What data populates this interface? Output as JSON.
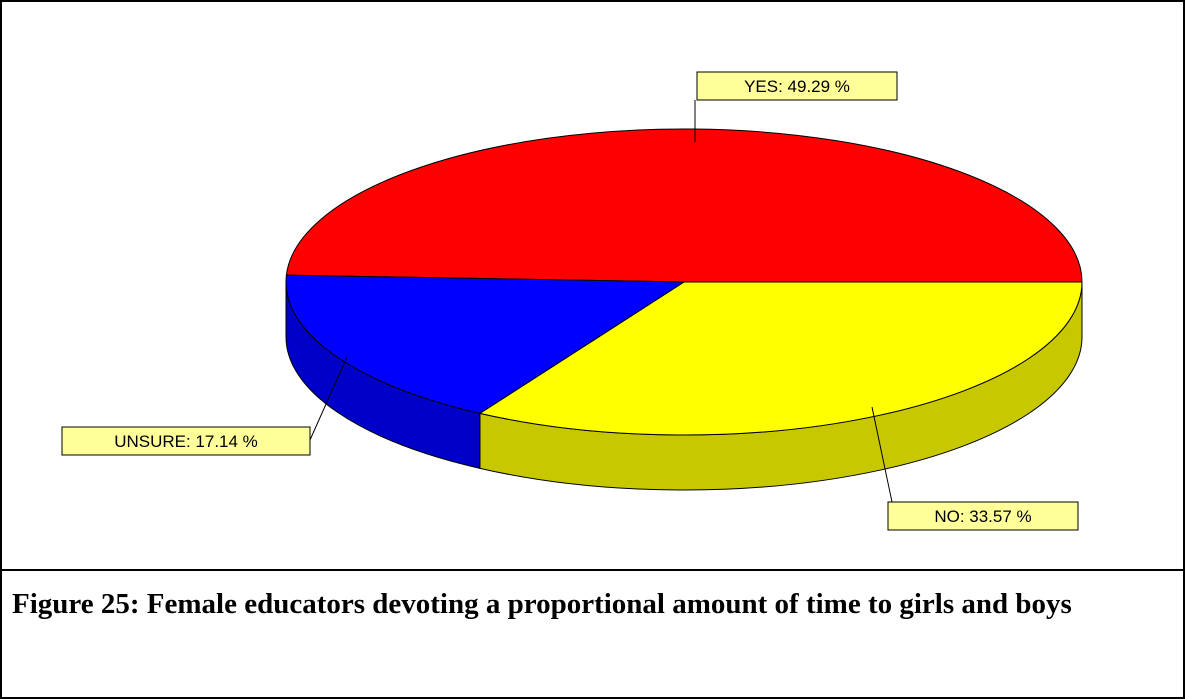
{
  "chart_data": {
    "type": "pie",
    "style": "3d",
    "slices": [
      {
        "label": "YES",
        "value": 49.29,
        "label_text": "YES:  49.29 %",
        "color": "#ff0000",
        "side_color": "#c00000"
      },
      {
        "label": "NO",
        "value": 33.57,
        "label_text": "NO:  33.57 %",
        "color": "#ffff00",
        "side_color": "#c8c800"
      },
      {
        "label": "UNSURE",
        "value": 17.14,
        "label_text": "UNSURE:  17.14 %",
        "color": "#0000ff",
        "side_color": "#0000c8"
      }
    ],
    "label_background": "#ffff99"
  },
  "caption": "Figure 25: Female educators devoting a proportional amount of time to girls and boys"
}
